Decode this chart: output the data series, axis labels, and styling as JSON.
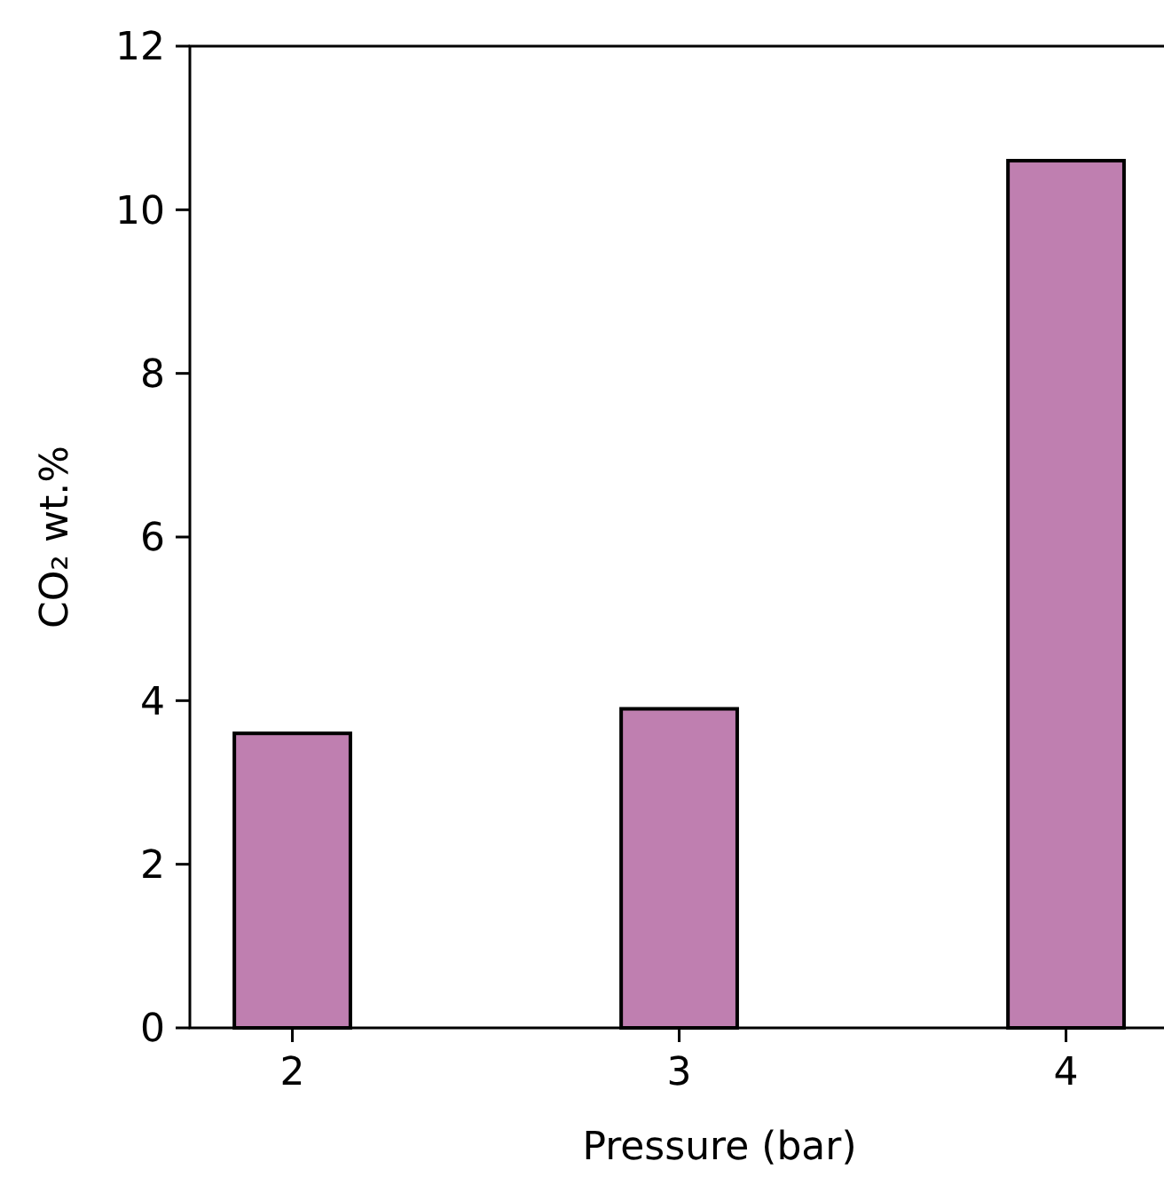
{
  "chart_data": {
    "type": "bar",
    "xlabel": "Pressure (bar)",
    "ylabel": "CO₂ wt.%",
    "categories": [
      "2",
      "3",
      "4"
    ],
    "values": [
      3.6,
      3.9,
      10.6
    ],
    "color": "#bf7fb0",
    "ylim": [
      0,
      12
    ],
    "yticks": [
      0,
      2,
      4,
      6,
      8,
      10,
      12
    ],
    "grid": false
  }
}
